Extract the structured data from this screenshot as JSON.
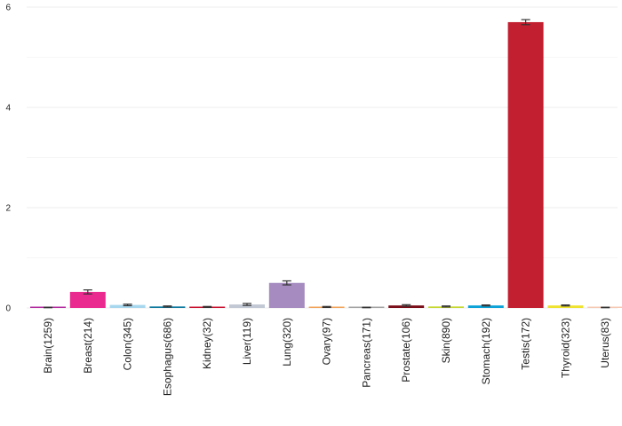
{
  "chart_data": {
    "type": "bar",
    "categories": [
      "Brain(1259)",
      "Breast(214)",
      "Colon(345)",
      "Esophagus(686)",
      "Kidney(32)",
      "Liver(119)",
      "Lung(320)",
      "Ovary(97)",
      "Pancreas(171)",
      "Prostate(106)",
      "Skin(890)",
      "Stomach(192)",
      "Testis(172)",
      "Thyroid(323)",
      "Uterus(83)"
    ],
    "values": [
      0.01,
      0.32,
      0.06,
      0.03,
      0.02,
      0.07,
      0.5,
      0.02,
      0.01,
      0.05,
      0.03,
      0.05,
      5.7,
      0.05,
      0.01
    ],
    "errors": [
      0.005,
      0.04,
      0.015,
      0.01,
      0.01,
      0.02,
      0.04,
      0.01,
      0.005,
      0.015,
      0.01,
      0.01,
      0.05,
      0.01,
      0.005
    ],
    "colors": [
      "#b22ba0",
      "#ea2a8f",
      "#a7d7ee",
      "#0f7a9e",
      "#c8102e",
      "#c2c9d4",
      "#a68bc1",
      "#f2a35a",
      "#a3a3a3",
      "#7a0d18",
      "#c6d832",
      "#0aa2d8",
      "#c21f30",
      "#efe22f",
      "#f6c8b4"
    ],
    "title": "",
    "xlabel": "",
    "ylabel": "",
    "ylim": [
      0,
      6
    ],
    "yticks": [
      0,
      2,
      4,
      6
    ],
    "grid": true,
    "legend": "none"
  }
}
